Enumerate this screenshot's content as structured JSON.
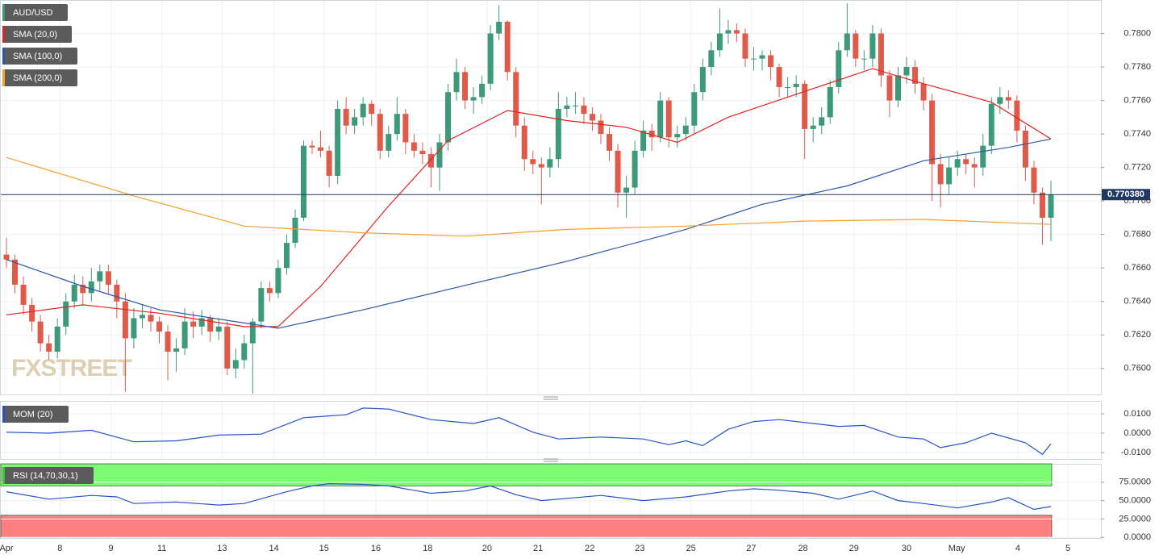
{
  "chart_data": [
    {
      "type": "candlestick",
      "title": "AUD/USD",
      "watermark": "FXSTREET",
      "colors": {
        "up": "#3d9a78",
        "down": "#e05a4a"
      },
      "ylim": [
        0.7584,
        0.782
      ],
      "yticks": [
        {
          "value": 0.76,
          "label": "0.7600"
        },
        {
          "value": 0.762,
          "label": "0.7620"
        },
        {
          "value": 0.764,
          "label": "0.7640"
        },
        {
          "value": 0.766,
          "label": "0.7660"
        },
        {
          "value": 0.768,
          "label": "0.7680"
        },
        {
          "value": 0.77,
          "label": "0.7700"
        },
        {
          "value": 0.772,
          "label": "0.7720"
        },
        {
          "value": 0.774,
          "label": "0.7740"
        },
        {
          "value": 0.776,
          "label": "0.7760"
        },
        {
          "value": 0.778,
          "label": "0.7780"
        },
        {
          "value": 0.78,
          "label": "0.7800"
        }
      ],
      "xlim": [
        0,
        123
      ],
      "xticks": [
        {
          "value": 0,
          "label": "Apr"
        },
        {
          "value": 6.3,
          "label": "8"
        },
        {
          "value": 12.3,
          "label": "9"
        },
        {
          "value": 18.3,
          "label": "11"
        },
        {
          "value": 25.4,
          "label": "13"
        },
        {
          "value": 31.5,
          "label": "14"
        },
        {
          "value": 37.4,
          "label": "15"
        },
        {
          "value": 43.5,
          "label": "16"
        },
        {
          "value": 49.6,
          "label": "18"
        },
        {
          "value": 56.6,
          "label": "20"
        },
        {
          "value": 62.6,
          "label": "21"
        },
        {
          "value": 68.7,
          "label": "22"
        },
        {
          "value": 74.6,
          "label": "23"
        },
        {
          "value": 80.6,
          "label": "25"
        },
        {
          "value": 87.7,
          "label": "27"
        },
        {
          "value": 93.8,
          "label": "28"
        },
        {
          "value": 99.8,
          "label": "29"
        },
        {
          "value": 106,
          "label": "30"
        },
        {
          "value": 111.9,
          "label": "May"
        },
        {
          "value": 119.1,
          "label": "4"
        },
        {
          "value": 125,
          "label": "5"
        }
      ],
      "grid": true,
      "last_price": {
        "value": 0.77038,
        "label": "0.770380"
      },
      "ohlc": [
        [
          0.7668,
          0.7678,
          0.766,
          0.7665
        ],
        [
          0.7665,
          0.7668,
          0.7645,
          0.765
        ],
        [
          0.765,
          0.7655,
          0.7632,
          0.7638
        ],
        [
          0.7638,
          0.7642,
          0.7622,
          0.7628
        ],
        [
          0.7628,
          0.7632,
          0.761,
          0.7615
        ],
        [
          0.7615,
          0.762,
          0.7605,
          0.761
        ],
        [
          0.761,
          0.763,
          0.7606,
          0.7625
        ],
        [
          0.7625,
          0.7645,
          0.762,
          0.764
        ],
        [
          0.764,
          0.7656,
          0.7636,
          0.765
        ],
        [
          0.765,
          0.7655,
          0.7638,
          0.7645
        ],
        [
          0.7645,
          0.766,
          0.764,
          0.7652
        ],
        [
          0.7652,
          0.7662,
          0.7646,
          0.7658
        ],
        [
          0.7658,
          0.7662,
          0.7644,
          0.765
        ],
        [
          0.765,
          0.7653,
          0.763,
          0.764
        ],
        [
          0.764,
          0.7645,
          0.7586,
          0.7618
        ],
        [
          0.7618,
          0.7636,
          0.7612,
          0.763
        ],
        [
          0.763,
          0.7638,
          0.7624,
          0.7632
        ],
        [
          0.7632,
          0.7636,
          0.7622,
          0.7628
        ],
        [
          0.7628,
          0.7631,
          0.7615,
          0.7622
        ],
        [
          0.7622,
          0.7626,
          0.7593,
          0.761
        ],
        [
          0.761,
          0.7618,
          0.7598,
          0.7612
        ],
        [
          0.7612,
          0.7636,
          0.7608,
          0.7628
        ],
        [
          0.7628,
          0.7634,
          0.7618,
          0.7625
        ],
        [
          0.7625,
          0.7635,
          0.762,
          0.763
        ],
        [
          0.763,
          0.7632,
          0.7616,
          0.7622
        ],
        [
          0.7622,
          0.763,
          0.7617,
          0.7625
        ],
        [
          0.7625,
          0.7628,
          0.7596,
          0.76
        ],
        [
          0.76,
          0.7612,
          0.7594,
          0.7605
        ],
        [
          0.7605,
          0.762,
          0.76,
          0.7615
        ],
        [
          0.7615,
          0.763,
          0.7585,
          0.7628
        ],
        [
          0.7628,
          0.7652,
          0.7624,
          0.7648
        ],
        [
          0.7648,
          0.7652,
          0.764,
          0.7645
        ],
        [
          0.7645,
          0.7665,
          0.7642,
          0.766
        ],
        [
          0.766,
          0.768,
          0.7656,
          0.7675
        ],
        [
          0.7675,
          0.7695,
          0.7672,
          0.769
        ],
        [
          0.769,
          0.7736,
          0.7688,
          0.7733
        ],
        [
          0.7733,
          0.7736,
          0.7728,
          0.7732
        ],
        [
          0.7732,
          0.7742,
          0.7726,
          0.773
        ],
        [
          0.773,
          0.7733,
          0.7708,
          0.7715
        ],
        [
          0.7715,
          0.776,
          0.771,
          0.7755
        ],
        [
          0.7755,
          0.7762,
          0.774,
          0.7745
        ],
        [
          0.7745,
          0.7755,
          0.774,
          0.775
        ],
        [
          0.775,
          0.7762,
          0.7745,
          0.7758
        ],
        [
          0.7758,
          0.776,
          0.7745,
          0.7752
        ],
        [
          0.7752,
          0.7755,
          0.7725,
          0.773
        ],
        [
          0.773,
          0.7745,
          0.7726,
          0.774
        ],
        [
          0.774,
          0.7762,
          0.7736,
          0.7752
        ],
        [
          0.7752,
          0.7755,
          0.7728,
          0.7735
        ],
        [
          0.7735,
          0.774,
          0.7726,
          0.773
        ],
        [
          0.773,
          0.7735,
          0.7722,
          0.7728
        ],
        [
          0.7728,
          0.7732,
          0.7708,
          0.772
        ],
        [
          0.772,
          0.774,
          0.7706,
          0.7735
        ],
        [
          0.7735,
          0.777,
          0.773,
          0.7765
        ],
        [
          0.7765,
          0.7785,
          0.776,
          0.7777
        ],
        [
          0.7777,
          0.778,
          0.7755,
          0.776
        ],
        [
          0.776,
          0.7768,
          0.7752,
          0.7762
        ],
        [
          0.7762,
          0.7775,
          0.7758,
          0.777
        ],
        [
          0.777,
          0.7805,
          0.7766,
          0.78
        ],
        [
          0.78,
          0.7817,
          0.7796,
          0.7807
        ],
        [
          0.7807,
          0.7808,
          0.7772,
          0.7777
        ],
        [
          0.7777,
          0.778,
          0.7738,
          0.7745
        ],
        [
          0.7745,
          0.775,
          0.7718,
          0.7725
        ],
        [
          0.7725,
          0.773,
          0.7716,
          0.7722
        ],
        [
          0.7722,
          0.7726,
          0.7698,
          0.772
        ],
        [
          0.772,
          0.7732,
          0.7714,
          0.7725
        ],
        [
          0.7725,
          0.7765,
          0.772,
          0.7755
        ],
        [
          0.7755,
          0.7762,
          0.775,
          0.7757
        ],
        [
          0.7757,
          0.7765,
          0.7752,
          0.7757
        ],
        [
          0.7757,
          0.7762,
          0.7746,
          0.7752
        ],
        [
          0.7752,
          0.7756,
          0.7742,
          0.7748
        ],
        [
          0.7748,
          0.7752,
          0.7734,
          0.774
        ],
        [
          0.774,
          0.7744,
          0.7724,
          0.773
        ],
        [
          0.773,
          0.7734,
          0.7696,
          0.7705
        ],
        [
          0.7705,
          0.7715,
          0.769,
          0.7708
        ],
        [
          0.7708,
          0.7736,
          0.7704,
          0.773
        ],
        [
          0.773,
          0.7748,
          0.7726,
          0.7742
        ],
        [
          0.7742,
          0.7746,
          0.773,
          0.7738
        ],
        [
          0.7738,
          0.7765,
          0.7735,
          0.776
        ],
        [
          0.776,
          0.7762,
          0.7732,
          0.7738
        ],
        [
          0.7738,
          0.7745,
          0.7732,
          0.774
        ],
        [
          0.774,
          0.775,
          0.7736,
          0.7745
        ],
        [
          0.7745,
          0.777,
          0.774,
          0.7765
        ],
        [
          0.7765,
          0.7785,
          0.776,
          0.778
        ],
        [
          0.778,
          0.7795,
          0.7775,
          0.779
        ],
        [
          0.779,
          0.7815,
          0.7786,
          0.78
        ],
        [
          0.78,
          0.7808,
          0.7794,
          0.7802
        ],
        [
          0.7802,
          0.7806,
          0.7795,
          0.78
        ],
        [
          0.78,
          0.7803,
          0.778,
          0.7785
        ],
        [
          0.7785,
          0.7792,
          0.7778,
          0.7785
        ],
        [
          0.7785,
          0.779,
          0.7778,
          0.7787
        ],
        [
          0.7787,
          0.779,
          0.7772,
          0.778
        ],
        [
          0.778,
          0.7782,
          0.7762,
          0.7768
        ],
        [
          0.7768,
          0.7774,
          0.7762,
          0.7768
        ],
        [
          0.7768,
          0.7775,
          0.7762,
          0.777
        ],
        [
          0.777,
          0.7772,
          0.7725,
          0.7743
        ],
        [
          0.7743,
          0.775,
          0.7735,
          0.7745
        ],
        [
          0.7745,
          0.7756,
          0.774,
          0.775
        ],
        [
          0.775,
          0.7772,
          0.7746,
          0.7768
        ],
        [
          0.7768,
          0.7795,
          0.7764,
          0.779
        ],
        [
          0.779,
          0.7818,
          0.7786,
          0.78
        ],
        [
          0.78,
          0.7802,
          0.778,
          0.7785
        ],
        [
          0.7785,
          0.779,
          0.7778,
          0.7785
        ],
        [
          0.7785,
          0.7805,
          0.778,
          0.78
        ],
        [
          0.78,
          0.7803,
          0.7768,
          0.7775
        ],
        [
          0.7775,
          0.7778,
          0.775,
          0.776
        ],
        [
          0.776,
          0.778,
          0.7756,
          0.7775
        ],
        [
          0.7775,
          0.7786,
          0.777,
          0.778
        ],
        [
          0.778,
          0.7784,
          0.7764,
          0.777
        ],
        [
          0.777,
          0.7774,
          0.7754,
          0.776
        ],
        [
          0.776,
          0.7764,
          0.77,
          0.7722
        ],
        [
          0.7722,
          0.7728,
          0.7696,
          0.771
        ],
        [
          0.771,
          0.7726,
          0.7704,
          0.772
        ],
        [
          0.772,
          0.773,
          0.7715,
          0.7725
        ],
        [
          0.7725,
          0.7728,
          0.7716,
          0.7722
        ],
        [
          0.7722,
          0.7726,
          0.7708,
          0.772
        ],
        [
          0.772,
          0.774,
          0.7715,
          0.7733
        ],
        [
          0.7733,
          0.7762,
          0.7728,
          0.7758
        ],
        [
          0.7758,
          0.7768,
          0.7752,
          0.7762
        ],
        [
          0.7762,
          0.7766,
          0.7755,
          0.776
        ],
        [
          0.776,
          0.7763,
          0.7735,
          0.7742
        ],
        [
          0.7742,
          0.7745,
          0.7712,
          0.772
        ],
        [
          0.772,
          0.7724,
          0.7698,
          0.7705
        ],
        [
          0.7705,
          0.7708,
          0.7674,
          0.769
        ],
        [
          0.769,
          0.7712,
          0.7676,
          0.77038
        ]
      ],
      "series": [
        {
          "name": "SMA (20,0)",
          "color": "#e3221f",
          "x": [
            0,
            9,
            18,
            28,
            32,
            37,
            45,
            52,
            59,
            66,
            73,
            79,
            85,
            92,
            102,
            108,
            116,
            123
          ],
          "values": [
            0.7632,
            0.7638,
            0.7633,
            0.7625,
            0.7625,
            0.7649,
            0.7697,
            0.7736,
            0.7754,
            0.7748,
            0.7744,
            0.7735,
            0.775,
            0.7762,
            0.7779,
            0.777,
            0.7759,
            0.7737
          ]
        },
        {
          "name": "SMA (100,0)",
          "color": "#2b57a8",
          "x": [
            0,
            9,
            18,
            32,
            42,
            56,
            66,
            80,
            89,
            99,
            108,
            118,
            123
          ],
          "values": [
            0.7665,
            0.7649,
            0.7635,
            0.7624,
            0.7635,
            0.7652,
            0.7664,
            0.7683,
            0.7698,
            0.7709,
            0.7724,
            0.7732,
            0.7737
          ]
        },
        {
          "name": "SMA (200,0)",
          "color": "#f5a02a",
          "x": [
            0,
            15,
            28,
            42,
            54,
            66,
            80,
            94,
            108,
            123
          ],
          "values": [
            0.7726,
            0.7703,
            0.7685,
            0.7681,
            0.7679,
            0.7683,
            0.7685,
            0.7688,
            0.7689,
            0.7686
          ]
        }
      ]
    },
    {
      "type": "line",
      "ylim": [
        -0.0138,
        0.0167
      ],
      "yticks": [
        {
          "value": -0.01,
          "label": "-0.0100"
        },
        {
          "value": 0,
          "label": "0.0000"
        },
        {
          "value": 0.01,
          "label": "0.0100"
        }
      ],
      "series": [
        {
          "name": "MOM (20)",
          "color": "#2753c9",
          "x": [
            0,
            5,
            10,
            15,
            20,
            25,
            30,
            35,
            40,
            42,
            45,
            50,
            55,
            58,
            62,
            65,
            70,
            75,
            78,
            80,
            82,
            85,
            88,
            91,
            95,
            98,
            101,
            105,
            108,
            110,
            113,
            116,
            120,
            122,
            123
          ],
          "values": [
            0.0005,
            0,
            0.0015,
            -0.0045,
            -0.004,
            -0.001,
            -0.0005,
            0.008,
            0.0095,
            0.013,
            0.0125,
            0.007,
            0.005,
            0.008,
            0.0005,
            -0.003,
            -0.002,
            -0.003,
            -0.006,
            -0.004,
            -0.0065,
            0.002,
            0.006,
            0.007,
            0.005,
            0.0035,
            0.004,
            -0.002,
            -0.003,
            -0.0075,
            -0.005,
            0,
            -0.005,
            -0.011,
            -0.0055
          ]
        }
      ]
    },
    {
      "type": "line",
      "ylim": [
        -2,
        100
      ],
      "yticks": [
        {
          "value": 0,
          "label": "0.0000"
        },
        {
          "value": 25,
          "label": "25.0000"
        },
        {
          "value": 50,
          "label": "50.0000"
        },
        {
          "value": 75,
          "label": "75.0000"
        }
      ],
      "bands": [
        {
          "range": [
            70,
            100
          ],
          "color": "#7cfc72"
        },
        {
          "range": [
            0,
            30
          ],
          "color": "#ff8080"
        }
      ],
      "series": [
        {
          "name": "RSI (14,70,30,1)",
          "color": "#2753c9",
          "x": [
            0,
            5,
            10,
            13,
            15,
            20,
            25,
            28,
            33,
            36,
            38,
            42,
            45,
            50,
            54,
            57,
            60,
            63,
            70,
            75,
            80,
            85,
            88,
            91,
            95,
            98,
            102,
            105,
            108,
            112,
            116,
            118,
            121,
            123
          ],
          "values": [
            62,
            52,
            57,
            55,
            46,
            48,
            44,
            46,
            62,
            70,
            73,
            72,
            70,
            60,
            63,
            70,
            58,
            50,
            57,
            50,
            55,
            63,
            66,
            64,
            60,
            52,
            63,
            50,
            46,
            40,
            48,
            54,
            38,
            42
          ]
        }
      ]
    }
  ]
}
